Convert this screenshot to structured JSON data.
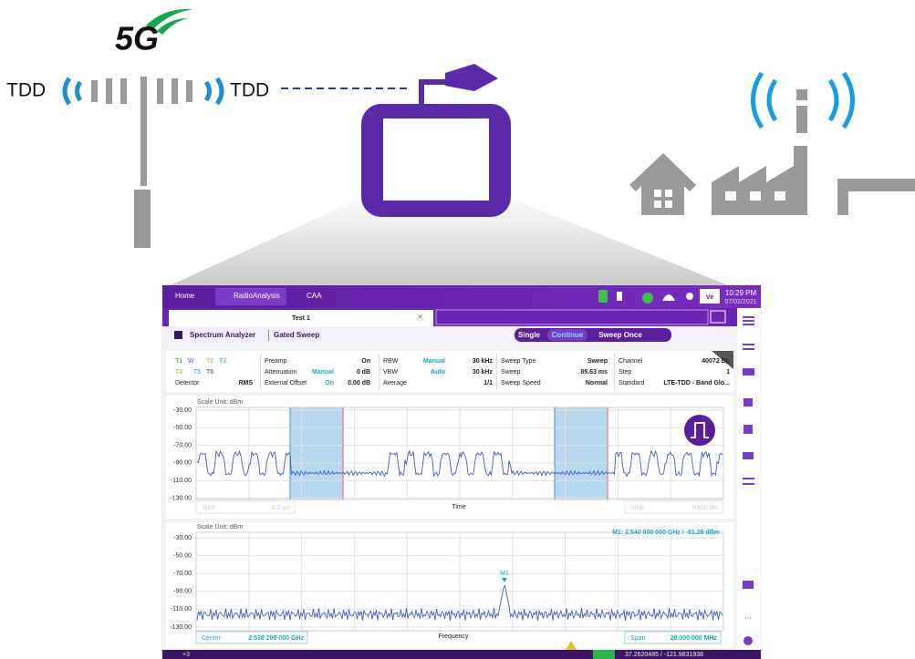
{
  "illustration": {
    "logo": "5G",
    "tdd_left": "TDD",
    "tdd_right": "TDD"
  },
  "screen": {
    "top_bar": {
      "home": "Home",
      "app": "RadioAnalysis",
      "caa": "CAA",
      "badge": "Ve",
      "time": "10:29 PM",
      "date": "07/02/2021"
    },
    "tab": {
      "title": "Test 1"
    },
    "toolbar": {
      "mode": "Spectrum Analyzer",
      "submode": "Gated Sweep",
      "buttons": [
        "Single",
        "Continue",
        "Sweep Once"
      ]
    },
    "settings": {
      "traces": [
        [
          "T1",
          "W",
          "T2",
          "T3"
        ],
        [
          "T4",
          "T5",
          "T6"
        ]
      ],
      "detector": [
        "Detector",
        "RMS"
      ],
      "columns": [
        [
          [
            "Preamp",
            "",
            "On"
          ],
          [
            "Attenuation",
            "Manual",
            "0 dB"
          ],
          [
            "External Offset",
            "On",
            "0.00 dB"
          ]
        ],
        [
          [
            "RBW",
            "Manual",
            "30 kHz"
          ],
          [
            "VBW",
            "Auto",
            "30 kHz"
          ],
          [
            "Average",
            "",
            "1/1"
          ]
        ],
        [
          [
            "Sweep Type",
            "",
            "Sweep"
          ],
          [
            "Sweep",
            "",
            "89.63 ms"
          ],
          [
            "Sweep Speed",
            "",
            "Normal"
          ]
        ],
        [
          [
            "Channel",
            "",
            "40072 DL"
          ],
          [
            "Step",
            "",
            "1"
          ],
          [
            "Standard",
            "",
            "LTE-TDD - Band Glo..."
          ]
        ]
      ]
    },
    "plot1": {
      "scale_unit": "Scale Unit: dBm",
      "yticks": [
        "-30.00",
        "-50.00",
        "-70.00",
        "-90.00",
        "-110.00",
        "-130.00"
      ],
      "start_label": "Start",
      "start_value": "0.0 µs",
      "x_label": "Time",
      "stop_label": "Stop",
      "stop_value": "10.00 ms"
    },
    "plot2": {
      "scale_unit": "Scale Unit: dBm",
      "marker_readout": "M1: 2.540 000 000 GHz / -81.26 dBm",
      "marker": "M1",
      "yticks": [
        "-30.00",
        "-50.00",
        "-70.00",
        "-90.00",
        "-110.00",
        "-130.00"
      ],
      "center_label": "Center",
      "center_value": "2.538 200 000 GHz",
      "x_label": "Frequency",
      "span_label": "Span",
      "span_value": "20.000 000 MHz"
    },
    "sidebar_more": "...",
    "status": {
      "badge": "+3",
      "coords": "37.2620485 / -121.9831938"
    }
  }
}
